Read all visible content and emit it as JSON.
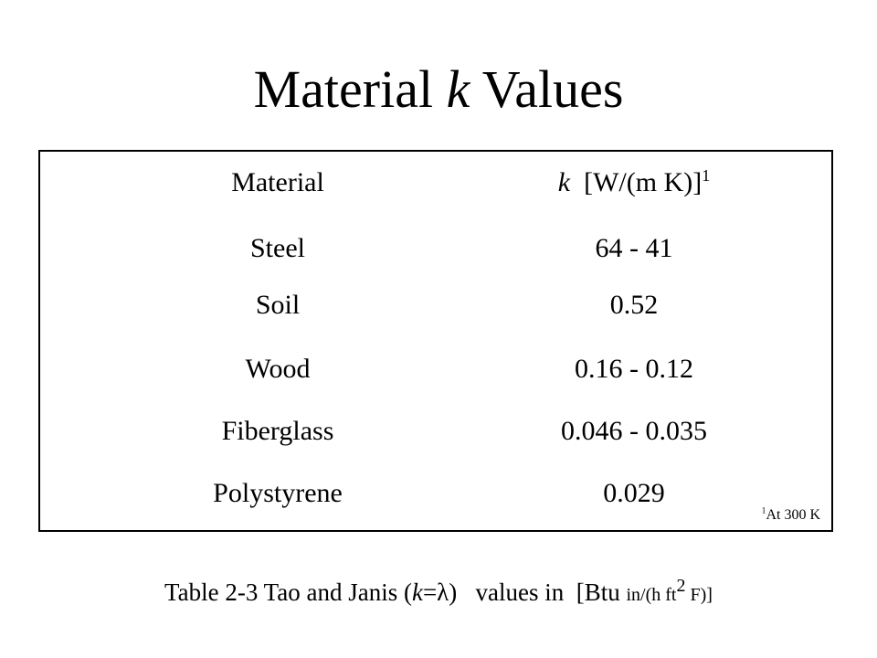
{
  "slide": {
    "title_prefix": "Material ",
    "title_italic": "k",
    "title_suffix": " Values"
  },
  "table": {
    "headers": {
      "material": "Material",
      "k_symbol": "k",
      "k_units": "  [W/(m K)]",
      "k_footnote_mark": "1"
    },
    "rows": [
      {
        "material": "Steel",
        "k": "64 - 41"
      },
      {
        "material": "Soil",
        "k": "0.52"
      },
      {
        "material": "Wood",
        "k": "0.16 - 0.12"
      },
      {
        "material": "Fiberglass",
        "k": "0.046 - 0.035"
      },
      {
        "material": "Polystyrene",
        "k": "0.029"
      }
    ],
    "footnote": {
      "mark": "1",
      "text": "At 300 K"
    }
  },
  "caption": {
    "part1": "Table 2-3 Tao and Janis (",
    "k_italic": "k",
    "equals_lambda": "=λ",
    "part2": ")   values in  [Btu ",
    "units_small": "in/(h ft",
    "units_sup": "2",
    "units_small_end": " F)]"
  }
}
